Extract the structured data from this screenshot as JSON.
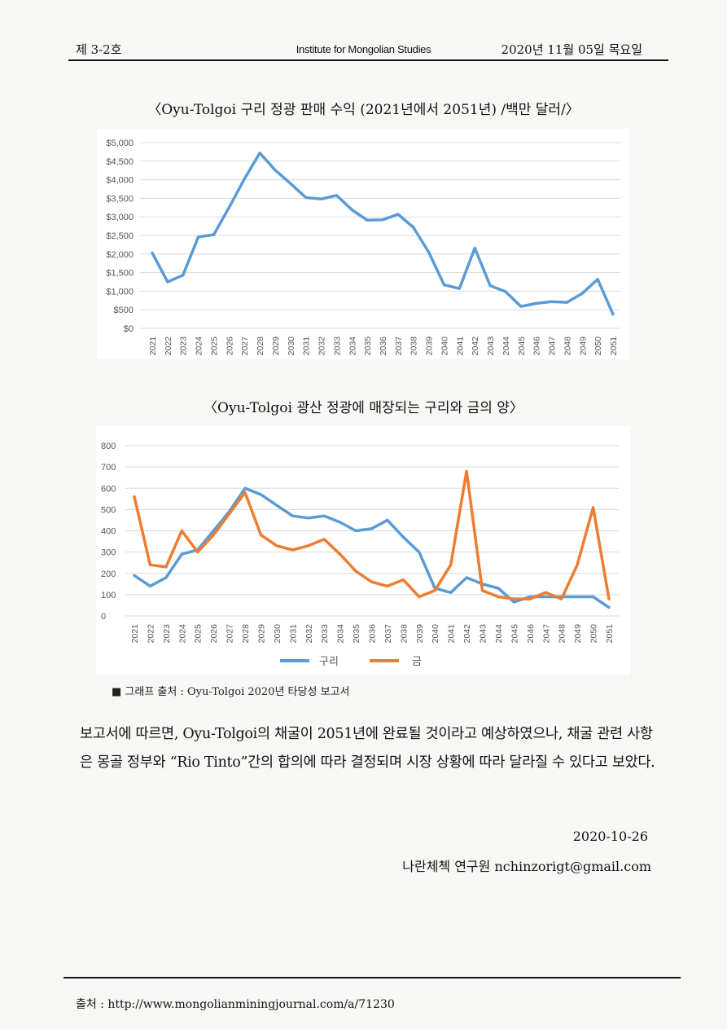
{
  "header": {
    "left": "제 3-2호",
    "center": "Institute for Mongolian Studies",
    "right": "2020년 11월 05일 목요일"
  },
  "chart1_title": "〈Oyu-Tolgoi 구리 정광 판매 수익 (2021년에서 2051년) /백만 달러/〉",
  "chart2_title": "〈Oyu-Tolgoi 광산 정광에 매장되는 구리와 금의 양〉",
  "chart_data": [
    {
      "type": "line",
      "title": "",
      "x": [
        2021,
        2022,
        2023,
        2024,
        2025,
        2026,
        2027,
        2028,
        2029,
        2030,
        2031,
        2032,
        2033,
        2034,
        2035,
        2036,
        2037,
        2038,
        2039,
        2040,
        2041,
        2042,
        2043,
        2044,
        2045,
        2046,
        2047,
        2048,
        2049,
        2050,
        2051
      ],
      "series": [
        {
          "name": "",
          "color": "#5b9bd5",
          "values": [
            2030,
            1250,
            1430,
            2460,
            2520,
            3250,
            4020,
            4720,
            4260,
            3900,
            3520,
            3480,
            3580,
            3190,
            2910,
            2920,
            3070,
            2720,
            2050,
            1170,
            1070,
            2160,
            1150,
            990,
            590,
            670,
            720,
            700,
            940,
            1320,
            380
          ]
        }
      ],
      "yticks": [
        "$0",
        "$500",
        "$1,000",
        "$1,500",
        "$2,000",
        "$2,500",
        "$3,000",
        "$3,500",
        "$4,000",
        "$4,500",
        "$5,000"
      ],
      "ylim": [
        0,
        5000
      ],
      "grid": true,
      "legend": "none"
    },
    {
      "type": "line",
      "title": "",
      "x": [
        2021,
        2022,
        2023,
        2024,
        2025,
        2026,
        2027,
        2028,
        2029,
        2030,
        2031,
        2032,
        2033,
        2034,
        2035,
        2036,
        2037,
        2038,
        2039,
        2040,
        2041,
        2042,
        2043,
        2044,
        2045,
        2046,
        2047,
        2048,
        2049,
        2050,
        2051
      ],
      "series": [
        {
          "name": "구리",
          "color": "#5b9bd5",
          "values": [
            190,
            140,
            180,
            290,
            310,
            400,
            490,
            600,
            570,
            520,
            470,
            460,
            470,
            440,
            400,
            410,
            450,
            370,
            300,
            130,
            110,
            180,
            150,
            130,
            65,
            90,
            90,
            90,
            90,
            90,
            40
          ]
        },
        {
          "name": "금",
          "color": "#ed7d31",
          "values": [
            560,
            240,
            230,
            400,
            300,
            380,
            480,
            580,
            380,
            330,
            310,
            330,
            360,
            290,
            210,
            160,
            140,
            170,
            90,
            120,
            240,
            680,
            120,
            90,
            80,
            80,
            110,
            80,
            240,
            510,
            80
          ]
        }
      ],
      "yticks": [
        "0",
        "100",
        "200",
        "300",
        "400",
        "500",
        "600",
        "700",
        "800"
      ],
      "ylim": [
        0,
        800
      ],
      "grid": true,
      "legend": "bottom"
    }
  ],
  "source_caption": "■ 그래프 출처 : Oyu-Tolgoi 2020년 타당성 보고서",
  "body_text": "보고서에 따르면, Oyu-Tolgoi의 채굴이 2051년에 완료될 것이라고 예상하였으나, 채굴 관련 사항은 몽골 정부와 “Rio Tinto”간의 합의에 따라 결정되며 시장 상황에 따라 달라질 수 있다고 보았다.",
  "date": "2020-10-26",
  "author": "나란체첵 연구원  nchinzorigt@gmail.com",
  "footer": "출처 : http://www.mongolianminingjournal.com/a/71230"
}
